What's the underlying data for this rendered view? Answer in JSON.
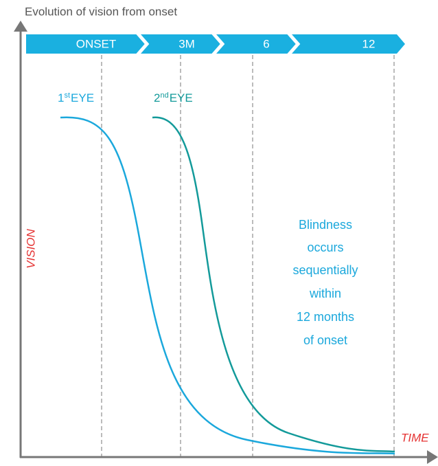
{
  "header": {
    "title": "Evolution of vision from onset"
  },
  "timeline": [
    "ONSET",
    "3M",
    "6",
    "12"
  ],
  "curves": [
    {
      "number": "1",
      "suffix": "st",
      "label": "EYE"
    },
    {
      "number": "2",
      "suffix": "nd",
      "label": "EYE"
    }
  ],
  "annotation": [
    "Blindness",
    "occurs",
    "sequentially",
    "within",
    "12 months",
    "of onset"
  ],
  "axes": {
    "y": "VISION",
    "x": "TIME"
  }
}
